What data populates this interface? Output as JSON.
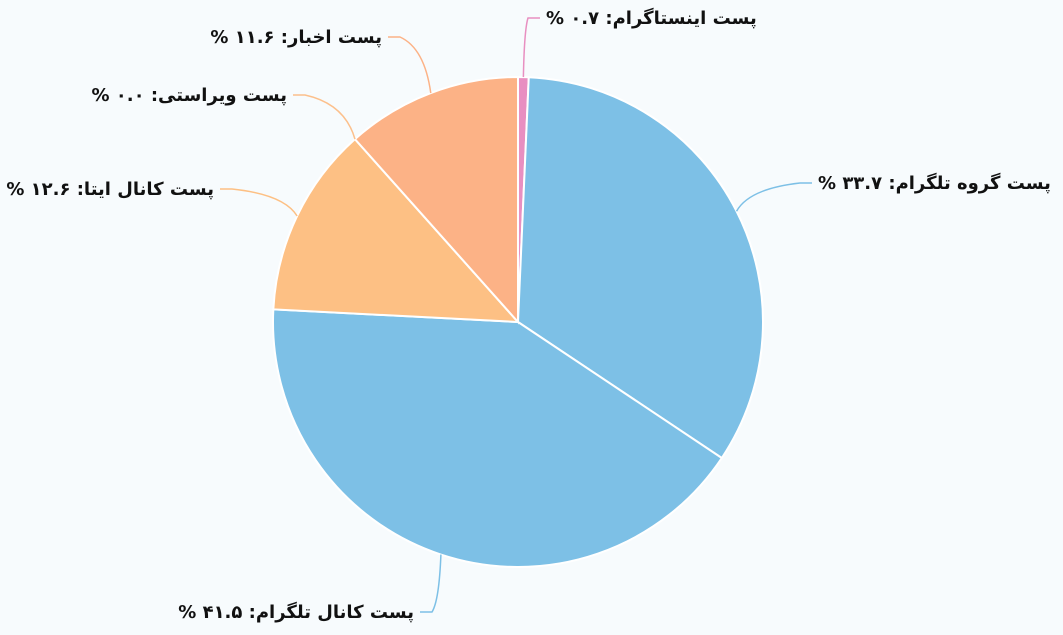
{
  "chart_data": {
    "type": "pie",
    "values": [
      0.7,
      33.7,
      41.5,
      12.6,
      0.0,
      11.6
    ],
    "value_labels": [
      "پست اینستاگرام: ۰.۷ %",
      "پست گروه تلگرام: ۳۳.۷ %",
      "پست کانال تلگرام: ۴۱.۵ %",
      "پست کانال ایتا: ۱۲.۶ %",
      "پست ویراستی: ۰.۰ %",
      "پست اخبار: ۱۱.۶ %"
    ],
    "colors": [
      "#e88fc1",
      "#7dc0e6",
      "#7dc0e6",
      "#fdc084",
      "#fcc08c",
      "#fcb286"
    ]
  }
}
